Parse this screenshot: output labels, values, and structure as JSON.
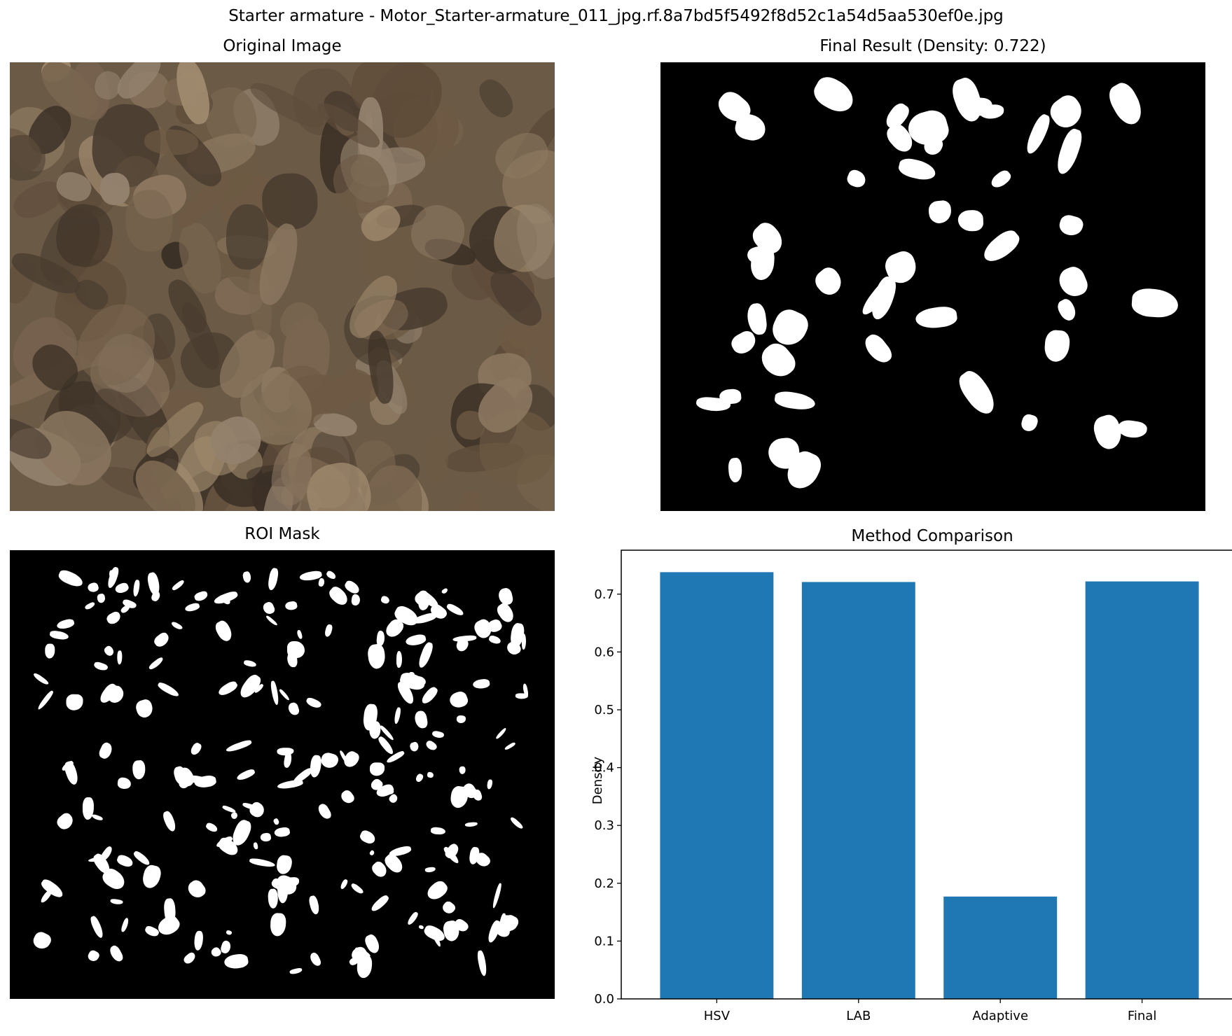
{
  "figure": {
    "suptitle": "Starter armature - Motor_Starter-armature_011_jpg.rf.8a7bd5f5492f8d52c1a54d5aa530ef0e.jpg"
  },
  "panels": {
    "original": {
      "title": "Original Image"
    },
    "final": {
      "title": "Final Result (Density: 0.722)"
    },
    "roi": {
      "title": "ROI Mask"
    },
    "comparison": {
      "title": "Method Comparison"
    }
  },
  "chart_data": {
    "type": "bar",
    "title": "Method Comparison",
    "xlabel": "",
    "ylabel": "Density",
    "categories": [
      "HSV",
      "LAB",
      "Adaptive",
      "Final"
    ],
    "values": [
      0.738,
      0.721,
      0.177,
      0.722
    ],
    "ylim": [
      0,
      0.776
    ],
    "yticks": [
      "0.0",
      "0.1",
      "0.2",
      "0.3",
      "0.4",
      "0.5",
      "0.6",
      "0.7"
    ],
    "bar_color": "#1f77b4",
    "grid": false
  },
  "colors": {
    "mask_background": "#000000",
    "mask_foreground": "#ffffff",
    "photo_tone": "#6b5a46"
  }
}
